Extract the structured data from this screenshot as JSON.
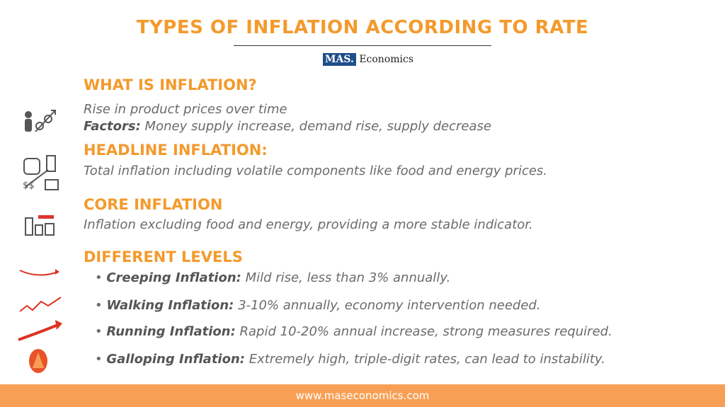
{
  "header": {
    "title": "TYPES OF INFLATION ACCORDING TO RATE",
    "logo_mark": "MAS.",
    "logo_text": "Economics"
  },
  "sections": [
    {
      "heading": "WHAT IS INFLATION?",
      "text": "Rise in product prices over time",
      "label": "Factors:",
      "detail": "Money supply increase, demand rise, supply decrease"
    },
    {
      "heading": "HEADLINE INFLATION:",
      "text": "Total inflation including volatile components like food and energy prices."
    },
    {
      "heading": "CORE INFLATION",
      "text": "Inflation excluding food and energy, providing a more stable indicator."
    },
    {
      "heading": "DIFFERENT LEVELS",
      "items": [
        {
          "name": "Creeping Inflation:",
          "text": "Mild rise, less than 3% annually."
        },
        {
          "name": "Walking Inflation:",
          "text": "3-10% annually, economy intervention needed."
        },
        {
          "name": "Running Inflation:",
          "text": "Rapid 10-20% annual increase, strong measures required."
        },
        {
          "name": "Galloping Inflation:",
          "text": "Extremely high, triple-digit rates, can lead to instability."
        }
      ]
    }
  ],
  "footer": {
    "url": "www.maseconomics.com"
  }
}
